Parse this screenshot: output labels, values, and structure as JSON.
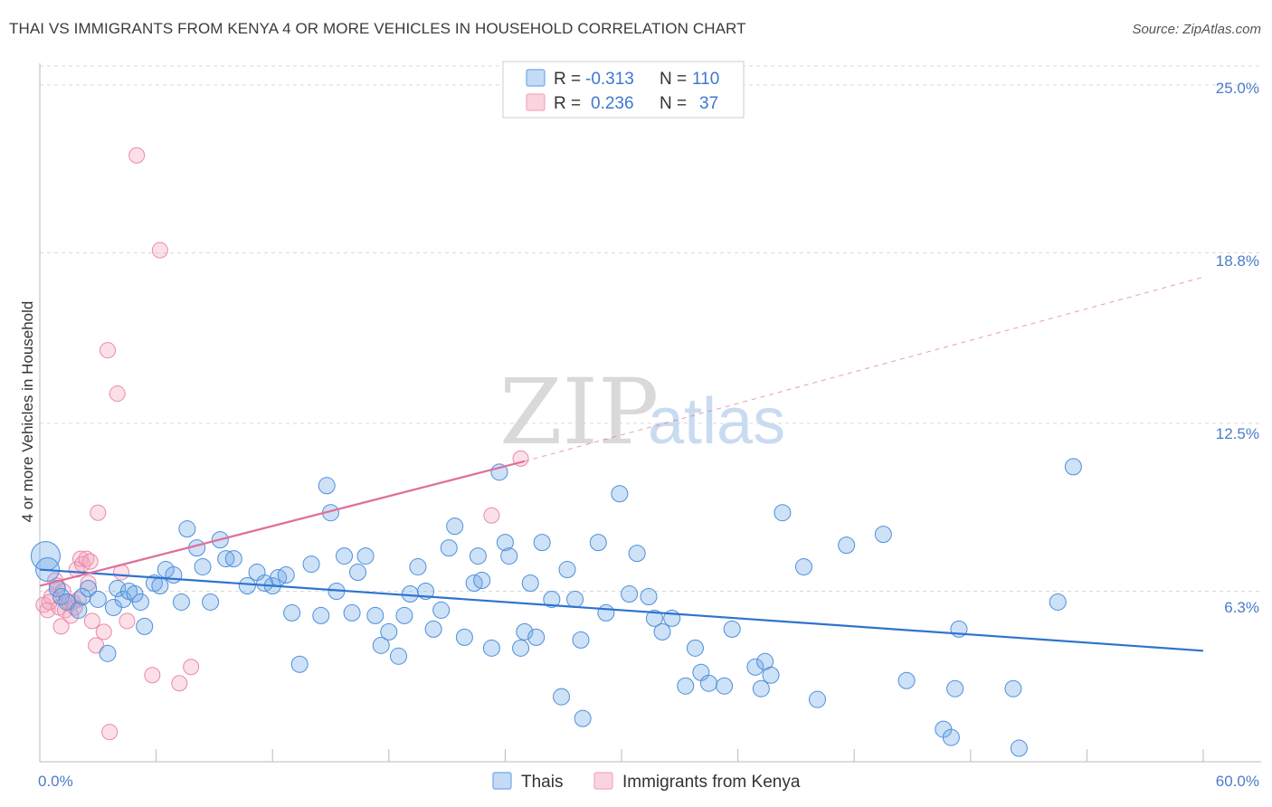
{
  "header": {
    "title": "THAI VS IMMIGRANTS FROM KENYA 4 OR MORE VEHICLES IN HOUSEHOLD CORRELATION CHART",
    "source": "Source: ZipAtlas.com"
  },
  "legend": {
    "rows": [
      {
        "r_label": "R =",
        "r_value": "-0.313",
        "n_label": "N =",
        "n_value": "110"
      },
      {
        "r_label": "R =",
        "r_value": "0.236",
        "n_label": "N =",
        "n_value": "37"
      }
    ]
  },
  "watermark": {
    "zip": "ZIP",
    "atlas": "atlas"
  },
  "colors": {
    "thai": "#6fa8e8",
    "thai_stroke": "#4f8fd9",
    "kenya": "#f4a7be",
    "kenya_stroke": "#e98aa8",
    "thai_line": "#2e73d0",
    "kenya_line": "#e0709a",
    "grid": "#d9d9d9"
  },
  "chart_data": {
    "type": "scatter",
    "title": "THAI VS IMMIGRANTS FROM KENYA 4 OR MORE VEHICLES IN HOUSEHOLD CORRELATION CHART",
    "ylabel": "4 or more Vehicles in Household",
    "xlim": [
      0,
      60
    ],
    "ylim": [
      0,
      25.8
    ],
    "x_tick_labels": [
      "0.0%",
      "60.0%"
    ],
    "y_tick_labels": [
      "6.3%",
      "12.5%",
      "18.8%",
      "25.0%"
    ],
    "y_ticks": [
      6.3,
      12.5,
      18.8,
      25.0
    ],
    "grid": true,
    "series": [
      {
        "name": "Thais",
        "trend": {
          "x": [
            0,
            60
          ],
          "y": [
            7.1,
            4.1
          ]
        },
        "points": [
          [
            0.3,
            7.6
          ],
          [
            0.4,
            7.1
          ],
          [
            0.9,
            6.4
          ],
          [
            1.1,
            6.1
          ],
          [
            1.4,
            5.9
          ],
          [
            2.0,
            5.6
          ],
          [
            2.2,
            6.1
          ],
          [
            2.5,
            6.4
          ],
          [
            3.0,
            6.0
          ],
          [
            3.5,
            4.0
          ],
          [
            3.8,
            5.7
          ],
          [
            4.0,
            6.4
          ],
          [
            4.3,
            6.0
          ],
          [
            4.6,
            6.3
          ],
          [
            4.9,
            6.2
          ],
          [
            5.2,
            5.9
          ],
          [
            5.4,
            5.0
          ],
          [
            5.9,
            6.6
          ],
          [
            6.2,
            6.5
          ],
          [
            6.5,
            7.1
          ],
          [
            6.9,
            6.9
          ],
          [
            7.3,
            5.9
          ],
          [
            7.6,
            8.6
          ],
          [
            8.1,
            7.9
          ],
          [
            8.4,
            7.2
          ],
          [
            8.8,
            5.9
          ],
          [
            9.3,
            8.2
          ],
          [
            9.6,
            7.5
          ],
          [
            10.0,
            7.5
          ],
          [
            10.7,
            6.5
          ],
          [
            11.2,
            7.0
          ],
          [
            11.6,
            6.6
          ],
          [
            12.0,
            6.5
          ],
          [
            12.3,
            6.8
          ],
          [
            12.7,
            6.9
          ],
          [
            13.0,
            5.5
          ],
          [
            13.4,
            3.6
          ],
          [
            14.0,
            7.3
          ],
          [
            14.5,
            5.4
          ],
          [
            14.8,
            10.2
          ],
          [
            15.0,
            9.2
          ],
          [
            15.3,
            6.3
          ],
          [
            15.7,
            7.6
          ],
          [
            16.1,
            5.5
          ],
          [
            16.4,
            7.0
          ],
          [
            16.8,
            7.6
          ],
          [
            17.3,
            5.4
          ],
          [
            17.6,
            4.3
          ],
          [
            18.0,
            4.8
          ],
          [
            18.5,
            3.9
          ],
          [
            18.8,
            5.4
          ],
          [
            19.1,
            6.2
          ],
          [
            19.5,
            7.2
          ],
          [
            19.9,
            6.3
          ],
          [
            20.3,
            4.9
          ],
          [
            20.7,
            5.6
          ],
          [
            21.1,
            7.9
          ],
          [
            21.4,
            8.7
          ],
          [
            21.9,
            4.6
          ],
          [
            22.4,
            6.6
          ],
          [
            22.6,
            7.6
          ],
          [
            22.8,
            6.7
          ],
          [
            23.3,
            4.2
          ],
          [
            23.7,
            10.7
          ],
          [
            24.0,
            8.1
          ],
          [
            24.2,
            7.6
          ],
          [
            24.8,
            4.2
          ],
          [
            25.0,
            4.8
          ],
          [
            25.3,
            6.6
          ],
          [
            25.6,
            4.6
          ],
          [
            25.9,
            8.1
          ],
          [
            26.4,
            6.0
          ],
          [
            26.9,
            2.4
          ],
          [
            27.2,
            7.1
          ],
          [
            27.6,
            6.0
          ],
          [
            27.9,
            4.5
          ],
          [
            28.8,
            8.1
          ],
          [
            29.2,
            5.5
          ],
          [
            29.9,
            9.9
          ],
          [
            30.4,
            6.2
          ],
          [
            30.8,
            7.7
          ],
          [
            31.4,
            6.1
          ],
          [
            31.7,
            5.3
          ],
          [
            32.1,
            4.8
          ],
          [
            32.6,
            5.3
          ],
          [
            33.3,
            2.8
          ],
          [
            33.8,
            4.2
          ],
          [
            34.1,
            3.3
          ],
          [
            34.5,
            2.9
          ],
          [
            35.3,
            2.8
          ],
          [
            35.7,
            4.9
          ],
          [
            36.9,
            3.5
          ],
          [
            37.2,
            2.7
          ],
          [
            37.4,
            3.7
          ],
          [
            37.7,
            3.2
          ],
          [
            38.3,
            9.2
          ],
          [
            39.4,
            7.2
          ],
          [
            40.1,
            2.3
          ],
          [
            41.6,
            8.0
          ],
          [
            43.5,
            8.4
          ],
          [
            44.7,
            3.0
          ],
          [
            46.6,
            1.2
          ],
          [
            47.0,
            0.9
          ],
          [
            47.2,
            2.7
          ],
          [
            47.4,
            4.9
          ],
          [
            50.2,
            2.7
          ],
          [
            50.5,
            0.5
          ],
          [
            52.5,
            5.9
          ],
          [
            53.3,
            10.9
          ],
          [
            28.0,
            1.6
          ]
        ]
      },
      {
        "name": "Immigrants from Kenya",
        "trend": {
          "x": [
            0,
            25.0
          ],
          "y": [
            6.5,
            11.1
          ]
        },
        "trend_extension": {
          "x": [
            25.0,
            60
          ],
          "y": [
            11.1,
            17.9
          ]
        },
        "points": [
          [
            0.2,
            5.8
          ],
          [
            0.4,
            5.6
          ],
          [
            0.6,
            6.1
          ],
          [
            0.8,
            6.7
          ],
          [
            1.0,
            5.7
          ],
          [
            1.1,
            5.0
          ],
          [
            1.3,
            5.6
          ],
          [
            1.5,
            5.9
          ],
          [
            1.6,
            5.4
          ],
          [
            1.7,
            5.9
          ],
          [
            1.9,
            7.1
          ],
          [
            2.1,
            7.5
          ],
          [
            2.2,
            7.3
          ],
          [
            2.4,
            7.5
          ],
          [
            2.5,
            6.6
          ],
          [
            2.7,
            5.2
          ],
          [
            2.9,
            4.3
          ],
          [
            3.0,
            9.2
          ],
          [
            3.3,
            4.8
          ],
          [
            3.5,
            15.2
          ],
          [
            3.6,
            1.1
          ],
          [
            4.0,
            13.6
          ],
          [
            4.2,
            7.0
          ],
          [
            4.5,
            5.2
          ],
          [
            5.0,
            22.4
          ],
          [
            5.8,
            3.2
          ],
          [
            6.2,
            18.9
          ],
          [
            7.2,
            2.9
          ],
          [
            7.8,
            3.5
          ],
          [
            24.8,
            11.2
          ],
          [
            23.3,
            9.1
          ],
          [
            1.2,
            6.3
          ],
          [
            0.9,
            6.5
          ],
          [
            1.8,
            5.7
          ],
          [
            2.0,
            6.0
          ],
          [
            0.5,
            5.9
          ],
          [
            2.6,
            7.4
          ]
        ]
      }
    ]
  },
  "bottom_legend": [
    {
      "label": "Thais"
    },
    {
      "label": "Immigrants from Kenya"
    }
  ]
}
